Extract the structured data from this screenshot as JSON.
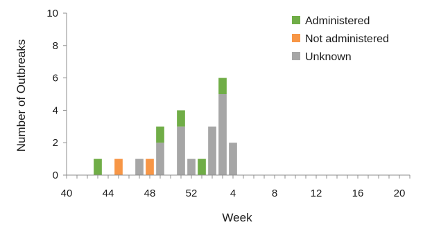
{
  "chart_data": {
    "type": "bar",
    "stacked": true,
    "title": "",
    "xlabel": "Week",
    "ylabel": "Number of Outbreaks",
    "ylim": [
      0,
      10
    ],
    "yticks": [
      0,
      2,
      4,
      6,
      8,
      10
    ],
    "grid": false,
    "legend_position": "top-right",
    "x_tick_labels": [
      "40",
      "44",
      "48",
      "52",
      "4",
      "8",
      "12",
      "16",
      "20"
    ],
    "x_tick_every": 4,
    "categories": [
      "40",
      "41",
      "42",
      "43",
      "44",
      "45",
      "46",
      "47",
      "48",
      "49",
      "50",
      "51",
      "52",
      "53",
      "1",
      "2",
      "3",
      "4",
      "5",
      "6",
      "7",
      "8",
      "9",
      "10",
      "11",
      "12",
      "13",
      "14",
      "15",
      "16",
      "17",
      "18",
      "19",
      "20"
    ],
    "series": [
      {
        "name": "Unknown",
        "color": "#a6a6a6",
        "values": [
          0,
          0,
          0,
          0,
          0,
          0,
          0,
          1,
          0,
          2,
          0,
          3,
          1,
          0,
          3,
          5,
          2,
          0,
          0,
          0,
          0,
          0,
          0,
          0,
          0,
          0,
          0,
          0,
          0,
          0,
          0,
          0,
          0,
          0
        ]
      },
      {
        "name": "Not administered",
        "color": "#f79646",
        "values": [
          0,
          0,
          0,
          0,
          0,
          1,
          0,
          0,
          1,
          0,
          0,
          0,
          0,
          0,
          0,
          0,
          0,
          0,
          0,
          0,
          0,
          0,
          0,
          0,
          0,
          0,
          0,
          0,
          0,
          0,
          0,
          0,
          0,
          0
        ]
      },
      {
        "name": "Administered",
        "color": "#70ad47",
        "values": [
          0,
          0,
          0,
          1,
          0,
          0,
          0,
          0,
          0,
          1,
          0,
          1,
          0,
          1,
          0,
          1,
          0,
          0,
          0,
          0,
          0,
          0,
          0,
          0,
          0,
          0,
          0,
          0,
          0,
          0,
          0,
          0,
          0,
          0
        ]
      }
    ],
    "legend_order": [
      "Administered",
      "Not administered",
      "Unknown"
    ]
  }
}
